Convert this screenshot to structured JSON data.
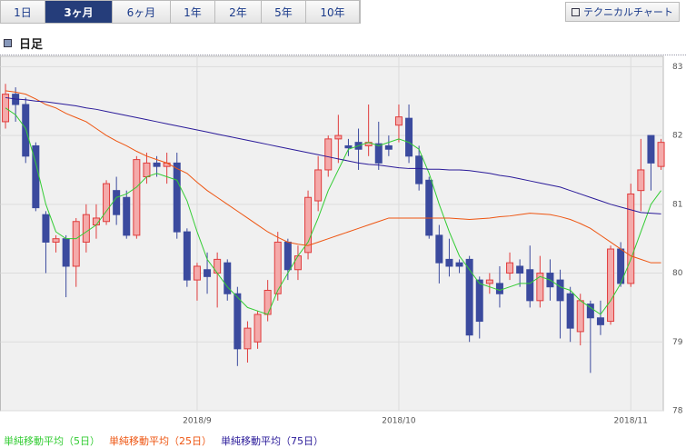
{
  "tabs": [
    "1日",
    "3ヶ月",
    "6ヶ月",
    "1年",
    "2年",
    "5年",
    "10年"
  ],
  "active_tab": 1,
  "button": "テクニカルチャート",
  "section_title": "日足",
  "chart_data": {
    "type": "candlestick",
    "categories": [
      null,
      null,
      null,
      null,
      null,
      null,
      null,
      null,
      null,
      null,
      null,
      null,
      null,
      null,
      null,
      null,
      null,
      null,
      null,
      "2018/9",
      null,
      null,
      null,
      null,
      null,
      null,
      null,
      null,
      null,
      null,
      null,
      null,
      null,
      null,
      null,
      null,
      null,
      null,
      null,
      "2018/10",
      null,
      null,
      null,
      null,
      null,
      null,
      null,
      null,
      null,
      null,
      null,
      null,
      null,
      null,
      null,
      null,
      null,
      null,
      null,
      null,
      null,
      null,
      "2018/11",
      null,
      null,
      null
    ],
    "open": [
      82.2,
      82.6,
      82.45,
      81.85,
      80.85,
      80.45,
      80.5,
      80.1,
      80.45,
      80.7,
      80.75,
      81.2,
      81.1,
      80.55,
      81.4,
      81.6,
      81.55,
      81.6,
      80.6,
      79.9,
      80.05,
      80.0,
      80.15,
      79.7,
      78.9,
      79.0,
      79.4,
      79.7,
      80.45,
      80.05,
      80.3,
      81.05,
      81.5,
      81.95,
      81.85,
      81.9,
      81.85,
      81.88,
      81.85,
      82.15,
      82.25,
      81.7,
      81.35,
      80.55,
      80.2,
      80.15,
      80.2,
      79.9,
      79.85,
      79.85,
      80.0,
      80.1,
      80.05,
      79.6,
      80.0,
      79.9,
      79.7,
      79.15,
      79.55,
      79.35,
      79.3,
      80.35,
      79.85,
      81.2,
      82.0,
      81.55
    ],
    "high": [
      82.75,
      82.7,
      82.55,
      81.9,
      80.9,
      80.55,
      80.55,
      80.8,
      81.0,
      81.0,
      81.35,
      81.4,
      81.2,
      81.7,
      81.75,
      81.7,
      81.75,
      81.75,
      80.65,
      80.15,
      80.3,
      80.3,
      80.2,
      79.8,
      79.3,
      79.45,
      79.9,
      80.6,
      80.5,
      80.4,
      81.2,
      81.7,
      82.0,
      82.3,
      81.95,
      82.1,
      82.45,
      82.2,
      82.0,
      82.45,
      82.45,
      81.85,
      81.4,
      80.7,
      80.5,
      80.2,
      80.25,
      79.95,
      80.0,
      80.1,
      80.3,
      80.2,
      80.4,
      80.25,
      80.2,
      80.05,
      79.8,
      79.7,
      79.6,
      79.6,
      80.4,
      80.45,
      81.3,
      81.95,
      82.0,
      81.95
    ],
    "low": [
      82.1,
      82.2,
      81.6,
      80.9,
      80.0,
      80.3,
      79.65,
      79.8,
      80.3,
      80.5,
      80.7,
      80.7,
      80.5,
      80.5,
      81.3,
      81.4,
      81.3,
      80.5,
      79.8,
      79.6,
      79.7,
      79.5,
      79.6,
      78.65,
      78.7,
      78.9,
      79.3,
      79.6,
      79.9,
      79.9,
      80.2,
      80.9,
      81.4,
      81.6,
      81.7,
      81.5,
      81.7,
      81.5,
      81.7,
      81.9,
      81.6,
      81.2,
      80.5,
      79.85,
      79.95,
      80.0,
      79.0,
      79.05,
      79.7,
      79.5,
      79.9,
      79.8,
      79.5,
      79.5,
      79.6,
      79.05,
      79.0,
      78.95,
      78.55,
      79.1,
      79.25,
      79.8,
      79.8,
      80.9,
      81.2,
      81.5
    ],
    "close": [
      82.6,
      82.45,
      81.7,
      80.95,
      80.45,
      80.5,
      80.1,
      80.75,
      80.85,
      80.8,
      81.3,
      80.85,
      80.55,
      81.65,
      81.6,
      81.55,
      81.6,
      80.6,
      79.9,
      80.1,
      79.95,
      80.2,
      79.7,
      78.9,
      79.2,
      79.4,
      79.75,
      80.45,
      80.05,
      80.25,
      81.1,
      81.5,
      81.95,
      82.0,
      81.82,
      81.8,
      81.9,
      81.6,
      81.8,
      82.27,
      81.7,
      81.3,
      80.55,
      80.15,
      80.1,
      80.1,
      79.1,
      79.3,
      79.9,
      79.7,
      80.15,
      80.0,
      79.6,
      80.0,
      79.8,
      79.6,
      79.2,
      79.6,
      79.35,
      79.25,
      80.35,
      79.85,
      81.15,
      81.5,
      81.6,
      81.9
    ],
    "up_color": "#e03c3c",
    "down_color": "#3b4a9e",
    "series": [
      {
        "name": "単純移動平均（5日）",
        "color": "#33cc33",
        "values": [
          82.4,
          82.3,
          82.1,
          81.6,
          81.0,
          80.6,
          80.5,
          80.5,
          80.6,
          80.7,
          80.9,
          81.1,
          81.15,
          81.25,
          81.4,
          81.45,
          81.4,
          81.35,
          81.05,
          80.6,
          80.2,
          80.0,
          79.8,
          79.65,
          79.5,
          79.45,
          79.4,
          79.75,
          80.0,
          80.25,
          80.45,
          80.8,
          81.2,
          81.5,
          81.8,
          81.85,
          81.9,
          81.85,
          81.9,
          81.95,
          81.9,
          81.8,
          81.45,
          81.0,
          80.6,
          80.25,
          80.05,
          79.85,
          79.8,
          79.75,
          79.8,
          79.85,
          79.85,
          79.95,
          79.9,
          79.8,
          79.75,
          79.6,
          79.5,
          79.4,
          79.6,
          79.85,
          80.2,
          80.6,
          81.0,
          81.2
        ]
      },
      {
        "name": "単純移動平均（25日）",
        "color": "#ee5511",
        "values": [
          82.65,
          82.63,
          82.6,
          82.53,
          82.45,
          82.4,
          82.32,
          82.26,
          82.2,
          82.1,
          82.0,
          81.92,
          81.85,
          81.77,
          81.7,
          81.65,
          81.6,
          81.52,
          81.45,
          81.32,
          81.2,
          81.1,
          81.0,
          80.9,
          80.8,
          80.7,
          80.6,
          80.52,
          80.45,
          80.42,
          80.4,
          80.45,
          80.5,
          80.55,
          80.6,
          80.65,
          80.7,
          80.75,
          80.8,
          80.8,
          80.8,
          80.8,
          80.8,
          80.8,
          80.8,
          80.79,
          80.78,
          80.79,
          80.8,
          80.82,
          80.83,
          80.85,
          80.87,
          80.86,
          80.85,
          80.82,
          80.78,
          80.72,
          80.65,
          80.55,
          80.45,
          80.35,
          80.25,
          80.2,
          80.15,
          80.15
        ]
      },
      {
        "name": "単純移動平均（75日）",
        "color": "#2a1a99",
        "values": [
          82.55,
          82.53,
          82.52,
          82.5,
          82.49,
          82.47,
          82.45,
          82.43,
          82.4,
          82.38,
          82.35,
          82.32,
          82.29,
          82.26,
          82.23,
          82.2,
          82.17,
          82.14,
          82.11,
          82.08,
          82.05,
          82.02,
          81.99,
          81.96,
          81.93,
          81.9,
          81.87,
          81.84,
          81.81,
          81.78,
          81.75,
          81.72,
          81.69,
          81.66,
          81.63,
          81.6,
          81.58,
          81.57,
          81.55,
          81.53,
          81.52,
          81.52,
          81.51,
          81.51,
          81.5,
          81.5,
          81.49,
          81.47,
          81.45,
          81.42,
          81.4,
          81.37,
          81.34,
          81.31,
          81.28,
          81.25,
          81.2,
          81.15,
          81.1,
          81.05,
          81.0,
          80.96,
          80.92,
          80.88,
          80.87,
          80.86
        ]
      }
    ],
    "ylim": [
      78,
      83.15
    ],
    "yticks": [
      78,
      79,
      80,
      81,
      82,
      83
    ],
    "grid": true
  }
}
